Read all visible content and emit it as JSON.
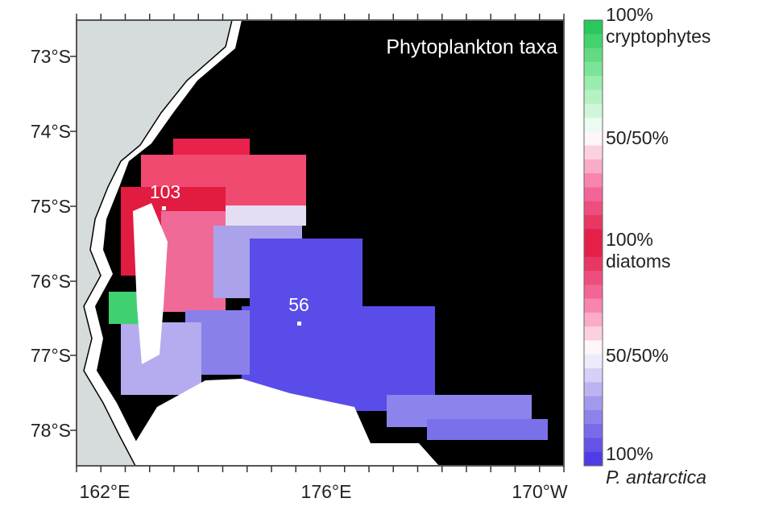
{
  "map": {
    "title": "Phytoplankton taxa",
    "y_axis": {
      "labels": [
        "73°S",
        "74°S",
        "75°S",
        "76°S",
        "77°S",
        "78°S"
      ]
    },
    "x_axis": {
      "labels": [
        "162°E",
        "176°E",
        "170°W"
      ]
    },
    "stations": [
      {
        "label": "103"
      },
      {
        "label": "56"
      }
    ],
    "colorbar": {
      "labels": [
        {
          "lines": [
            "100%",
            "cryptophytes"
          ]
        },
        {
          "lines": [
            "50/50%"
          ]
        },
        {
          "lines": [
            "100%",
            "diatoms"
          ]
        },
        {
          "lines": [
            "50/50%"
          ]
        },
        {
          "lines": [
            "100%",
            "P. antarctica"
          ]
        }
      ]
    }
  }
}
